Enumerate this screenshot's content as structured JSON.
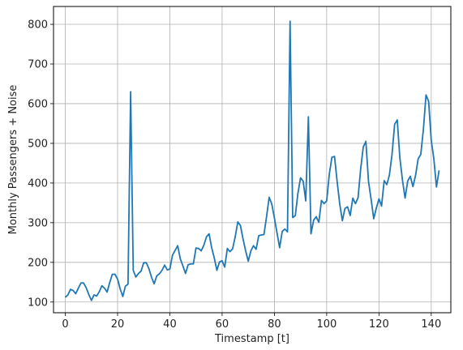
{
  "chart_data": {
    "type": "line",
    "xlabel": "Timestamp [t]",
    "ylabel": "Monthly Passengers + Noise",
    "xlim": [
      -4.5,
      147.5
    ],
    "ylim": [
      73,
      845
    ],
    "xticks": [
      0,
      20,
      40,
      60,
      80,
      100,
      120,
      140
    ],
    "yticks": [
      100,
      200,
      300,
      400,
      500,
      600,
      700,
      800
    ],
    "grid": true,
    "legend": "none",
    "series": [
      {
        "color": "#1f77b4",
        "x": [
          0,
          1,
          2,
          3,
          4,
          5,
          6,
          7,
          8,
          9,
          10,
          11,
          12,
          13,
          14,
          15,
          16,
          17,
          18,
          19,
          20,
          21,
          22,
          23,
          24,
          25,
          26,
          27,
          28,
          29,
          30,
          31,
          32,
          33,
          34,
          35,
          36,
          37,
          38,
          39,
          40,
          41,
          42,
          43,
          44,
          45,
          46,
          47,
          48,
          49,
          50,
          51,
          52,
          53,
          54,
          55,
          56,
          57,
          58,
          59,
          60,
          61,
          62,
          63,
          64,
          65,
          66,
          67,
          68,
          69,
          70,
          71,
          72,
          73,
          74,
          75,
          76,
          77,
          78,
          79,
          80,
          81,
          82,
          83,
          84,
          85,
          86,
          87,
          88,
          89,
          90,
          91,
          92,
          93,
          94,
          95,
          96,
          97,
          98,
          99,
          100,
          101,
          102,
          103,
          104,
          105,
          106,
          107,
          108,
          109,
          110,
          111,
          112,
          113,
          114,
          115,
          116,
          117,
          118,
          119,
          120,
          121,
          122,
          123,
          124,
          125,
          126,
          127,
          128,
          129,
          130,
          131,
          132,
          133,
          134,
          135,
          136,
          137,
          138,
          139,
          140,
          141,
          142,
          143
        ],
        "y": [
          112,
          118,
          132,
          129,
          121,
          135,
          148,
          148,
          136,
          119,
          104,
          118,
          115,
          126,
          141,
          135,
          125,
          149,
          170,
          170,
          158,
          133,
          114,
          140,
          145,
          630,
          180,
          163,
          172,
          178,
          199,
          199,
          184,
          162,
          146,
          166,
          171,
          180,
          193,
          181,
          183,
          218,
          230,
          242,
          209,
          191,
          172,
          194,
          196,
          196,
          236,
          235,
          229,
          243,
          264,
          272,
          237,
          211,
          180,
          201,
          204,
          188,
          235,
          227,
          234,
          264,
          302,
          293,
          259,
          229,
          203,
          229,
          242,
          233,
          267,
          269,
          270,
          315,
          364,
          347,
          312,
          274,
          237,
          278,
          284,
          277,
          808,
          313,
          318,
          374,
          413,
          405,
          355,
          567,
          272,
          306,
          315,
          301,
          356,
          348,
          355,
          422,
          465,
          467,
          404,
          347,
          305,
          336,
          340,
          318,
          362,
          348,
          363,
          435,
          491,
          505,
          404,
          359,
          310,
          337,
          360,
          342,
          406,
          396,
          420,
          472,
          548,
          559,
          463,
          407,
          362,
          405,
          417,
          391,
          419,
          461,
          472,
          535,
          622,
          606,
          508,
          461,
          390,
          432
        ]
      }
    ]
  }
}
